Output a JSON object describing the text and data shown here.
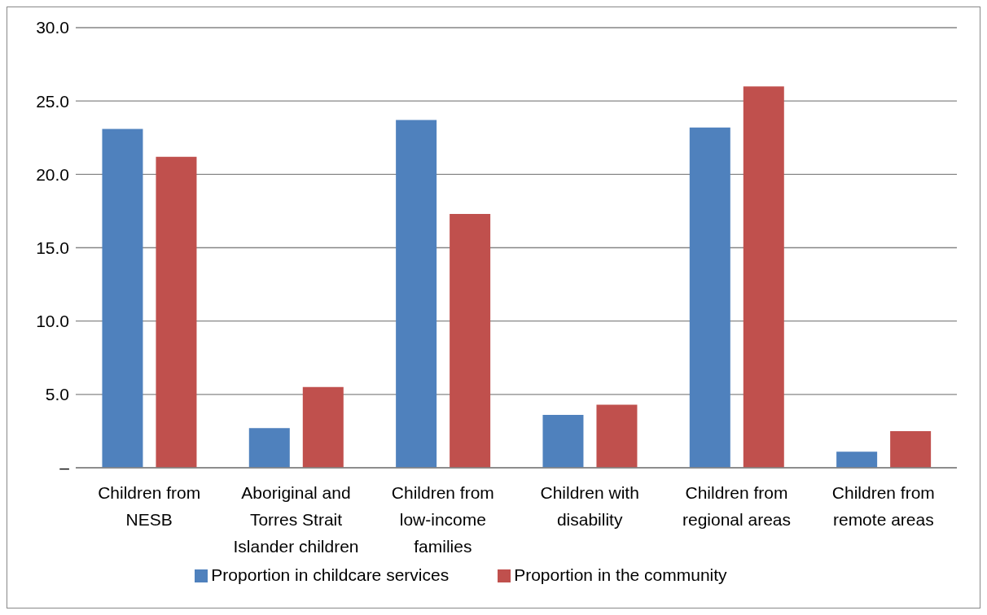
{
  "chart_data": {
    "type": "bar",
    "categories": [
      "Children from NESB",
      "Aboriginal and Torres Strait Islander children",
      "Children from low-income families",
      "Children with disability",
      "Children from regional areas",
      "Children from remote areas"
    ],
    "series": [
      {
        "name": "Proportion in childcare services",
        "color": "#4f81bd",
        "values": [
          23.1,
          2.7,
          23.7,
          3.6,
          23.2,
          1.1
        ]
      },
      {
        "name": "Proportion in the community",
        "color": "#c0504d",
        "values": [
          21.2,
          5.5,
          17.3,
          4.3,
          26.0,
          2.5
        ]
      }
    ],
    "ylim": [
      0,
      30
    ],
    "yticks": [
      {
        "value": 0,
        "label": "–"
      },
      {
        "value": 5,
        "label": "5.0"
      },
      {
        "value": 10,
        "label": "10.0"
      },
      {
        "value": 15,
        "label": "15.0"
      },
      {
        "value": 20,
        "label": "20.0"
      },
      {
        "value": 25,
        "label": "25.0"
      },
      {
        "value": 30,
        "label": "30.0"
      }
    ],
    "grid": "y",
    "legend": "bottom"
  }
}
